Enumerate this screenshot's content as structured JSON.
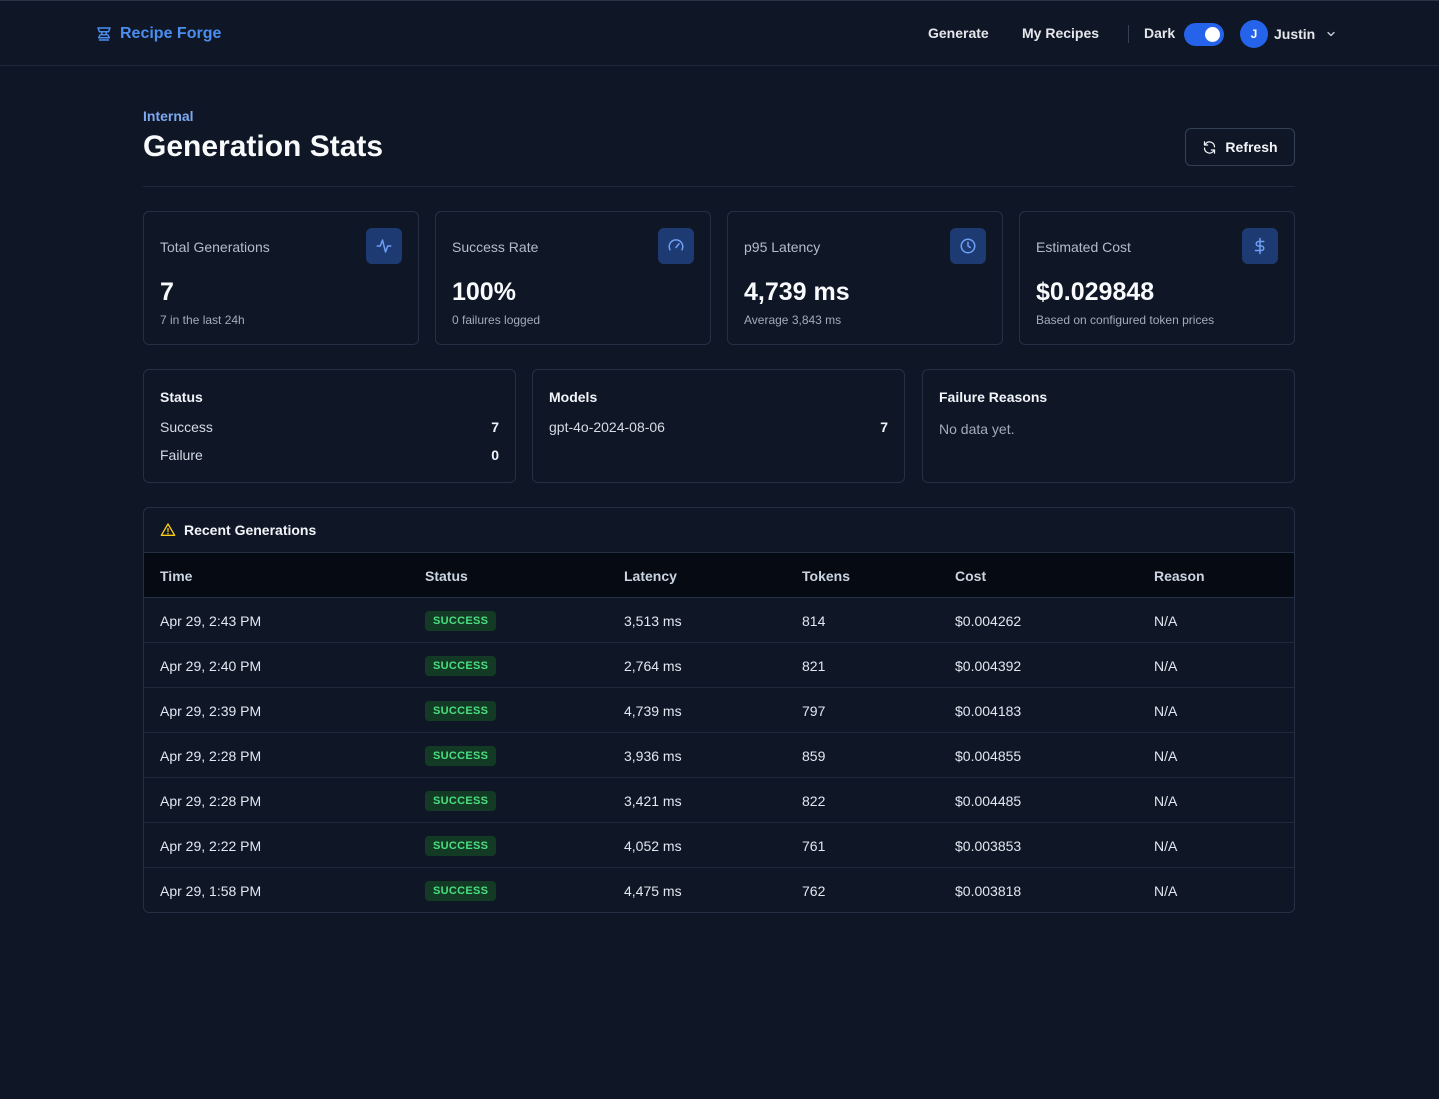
{
  "header": {
    "brand": "Recipe Forge",
    "nav": [
      "Generate",
      "My Recipes"
    ],
    "theme_label": "Dark",
    "theme_on": true,
    "user_initial": "J",
    "user_name": "Justin"
  },
  "page": {
    "eyebrow": "Internal",
    "title": "Generation Stats",
    "refresh_label": "Refresh"
  },
  "stats": [
    {
      "label": "Total Generations",
      "value": "7",
      "sub": "7 in the last 24h",
      "icon": "activity-icon"
    },
    {
      "label": "Success Rate",
      "value": "100%",
      "sub": "0 failures logged",
      "icon": "gauge-icon"
    },
    {
      "label": "p95 Latency",
      "value": "4,739 ms",
      "sub": "Average 3,843 ms",
      "icon": "clock-icon"
    },
    {
      "label": "Estimated Cost",
      "value": "$0.029848",
      "sub": "Based on configured token prices",
      "icon": "dollar-icon"
    }
  ],
  "status_panel": {
    "title": "Status",
    "rows": [
      {
        "label": "Success",
        "count": "7"
      },
      {
        "label": "Failure",
        "count": "0"
      }
    ]
  },
  "models_panel": {
    "title": "Models",
    "rows": [
      {
        "label": "gpt-4o-2024-08-06",
        "count": "7"
      }
    ]
  },
  "failures_panel": {
    "title": "Failure Reasons",
    "empty_text": "No data yet."
  },
  "recent": {
    "title": "Recent Generations",
    "columns": [
      "Time",
      "Status",
      "Latency",
      "Tokens",
      "Cost",
      "Reason"
    ],
    "rows": [
      {
        "time": "Apr 29, 2:43 PM",
        "status": "SUCCESS",
        "latency": "3,513 ms",
        "tokens": "814",
        "cost": "$0.004262",
        "reason": "N/A"
      },
      {
        "time": "Apr 29, 2:40 PM",
        "status": "SUCCESS",
        "latency": "2,764 ms",
        "tokens": "821",
        "cost": "$0.004392",
        "reason": "N/A"
      },
      {
        "time": "Apr 29, 2:39 PM",
        "status": "SUCCESS",
        "latency": "4,739 ms",
        "tokens": "797",
        "cost": "$0.004183",
        "reason": "N/A"
      },
      {
        "time": "Apr 29, 2:28 PM",
        "status": "SUCCESS",
        "latency": "3,936 ms",
        "tokens": "859",
        "cost": "$0.004855",
        "reason": "N/A"
      },
      {
        "time": "Apr 29, 2:28 PM",
        "status": "SUCCESS",
        "latency": "3,421 ms",
        "tokens": "822",
        "cost": "$0.004485",
        "reason": "N/A"
      },
      {
        "time": "Apr 29, 2:22 PM",
        "status": "SUCCESS",
        "latency": "4,052 ms",
        "tokens": "761",
        "cost": "$0.003853",
        "reason": "N/A"
      },
      {
        "time": "Apr 29, 1:58 PM",
        "status": "SUCCESS",
        "latency": "4,475 ms",
        "tokens": "762",
        "cost": "$0.003818",
        "reason": "N/A"
      }
    ]
  },
  "colors": {
    "background": "#0f1626",
    "accent": "#2563eb",
    "brand": "#4a8ef0",
    "success_text": "#4ade80",
    "success_bg": "#133a24",
    "warning": "#facc15"
  }
}
